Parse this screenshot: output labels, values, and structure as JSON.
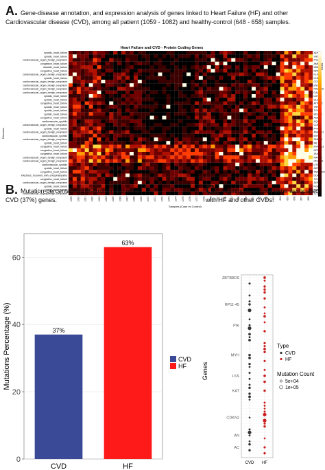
{
  "panel_a": {
    "letter": "A.",
    "caption": "Gene-disease annotation, and expression analysis of genes linked to Heart Failure (HF) and other Cardiovascular disease (CVD), among all patient (1059 - 1082) and healthy-control (648 - 658) samples."
  },
  "panel_b": {
    "letter": "B.",
    "caption": "Mutation-percentage of HF (63%) and other CVD (37%) genes."
  },
  "panel_c": {
    "letter": "C.",
    "caption": "Mutation-count per gene associated with HF and other CVDs."
  },
  "chart_data": [
    {
      "type": "heatmap",
      "title": "Heart Failure and CVD - Protein Coding Genes",
      "xlabel": "Samples (Case vs Control)",
      "ylabel": "Diseases",
      "color_scale_label": "Genes",
      "row_labels": [
        "systolic_heart_failure",
        "systolic_heart_failure",
        "cardiovascular_organ_benign_neoplasm",
        "congestive_heart_failure",
        "diastolic_heart_failure",
        "congestive_heart_failure",
        "cardiovascular_organ_benign_neoplasm",
        "systolic_heart_failure",
        "cardiovascular_organ_benign_neoplasm",
        "cardiovascular_organ_benign_neoplasm",
        "cardiovascular_organ_benign_neoplasm",
        "cardiovascular_organ_benign_neoplasm",
        "systolic_heart_failure",
        "systolic_heart_failure",
        "congestive_heart_failure",
        "systolic_heart_failure",
        "systolic_heart_failure",
        "systolic_heart_failure",
        "congestive_heart_failure",
        "cardiovascular_syphilis",
        "cardiovascular_organ_benign_neoplasm",
        "systolic_heart_failure",
        "cardiovascular_organ_benign_neoplasm",
        "cardiovascular_syphilis",
        "cardiovascular_organ_benign_neoplasm",
        "systolic_heart_failure",
        "congestive_heart_failure",
        "congestive_heart_failure",
        "congestive_heart_failure",
        "cardiovascular_organ_benign_neoplasm",
        "cardiovascular_organ_benign_neoplasm",
        "cardiovascular_syphilis",
        "systolic_heart_failure",
        "congestive_heart_failure",
        "infectious_recurrent_with_encephalopathy",
        "congestive_heart_failure",
        "cardiovascular_organ_benign_neoplasm",
        "systolic_heart_failure",
        "systolic_heart_failure",
        "cardiovascular_organ_benign_neoplasm"
      ],
      "gene_labels": [
        "ADRB1",
        "VIP2",
        "ITGA8",
        "AMPD1",
        "MMP2",
        "NPR1",
        "FLK",
        "CUBS",
        "CD34",
        "ENO3",
        "PIK3C2A",
        "CALD1",
        "LDHD3",
        "GLMN",
        "ATP2A2",
        "TRPV1",
        "TCN1",
        "IRS3C2",
        "AGE",
        "AQS3",
        "CORIN",
        "PTPN7",
        "ANKRD1",
        "MYH7",
        "SMUG1",
        "RB",
        "MYBPC3",
        "NPPA",
        "JAK2",
        "KANTR",
        "CD40LG",
        "UTS2",
        "ADRB2",
        "TNFRSF8",
        "DDK41",
        "TCL",
        "ADRB2",
        "PGFN",
        "TNF",
        "TLCA1"
      ],
      "x_ticks": [
        "1059",
        "1060",
        "1061",
        "1062",
        "1063",
        "1064",
        "1065",
        "1066",
        "1067",
        "1068",
        "1069",
        "1070",
        "1071",
        "1072",
        "1073",
        "1074",
        "1075",
        "1076",
        "1077",
        "1078",
        "1079",
        "1080",
        "1081",
        "1082",
        "648",
        "649",
        "650",
        "651",
        "652",
        "653",
        "654",
        "655",
        "656",
        "657",
        "658"
      ]
    },
    {
      "type": "bar",
      "categories": [
        "CVD",
        "HF"
      ],
      "values": [
        37,
        63
      ],
      "data_labels": [
        "37%",
        "63%"
      ],
      "colors": [
        "#3b4a96",
        "#ff1a1a"
      ],
      "xlabel": "",
      "ylabel": "Mutations Percentage (%)",
      "yticks": [
        0,
        20,
        40,
        60
      ],
      "ylim": [
        0,
        67
      ],
      "legend": [
        "CVD",
        "HF"
      ],
      "legend_position": "right"
    },
    {
      "type": "scatter",
      "categories": [
        "CVD",
        "HF"
      ],
      "ylabel": "Genes",
      "gene_labels": [
        "ZBTB8OS",
        "RP11-45",
        "PIK",
        "MYH",
        "LSS",
        "KAT",
        "CDKN2",
        "AN",
        "AC"
      ],
      "legend_type_title": "Type",
      "legend_types": [
        "CVD",
        "HF"
      ],
      "legend_type_colors": [
        "#333333",
        "#cc1f1f"
      ],
      "legend_size_title": "Mutation Count",
      "legend_sizes": [
        "5e+04",
        "1e+05"
      ]
    }
  ]
}
